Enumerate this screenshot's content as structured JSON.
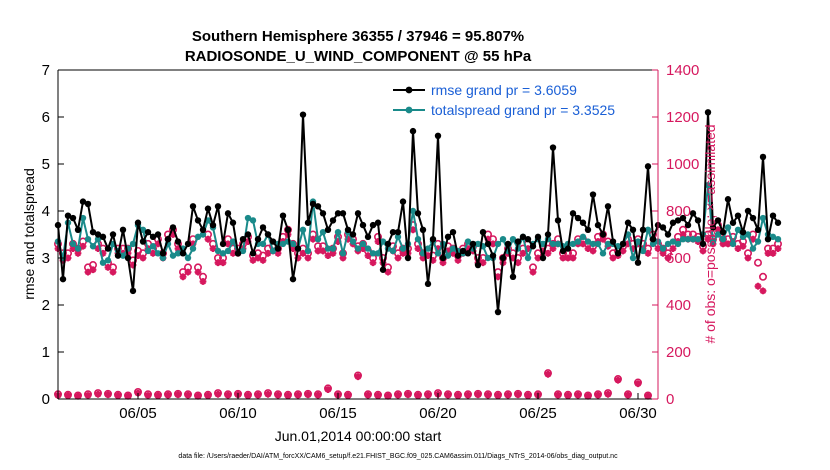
{
  "chart_data": {
    "type": "line",
    "title": "Southern Hemisphere 36355 / 37946 = 95.807%",
    "subtitle": "RADIOSONDE_U_WIND_COMPONENT @ 55 hPa",
    "xlabel": "Jun.01,2014 00:00:00 start",
    "ylabel": "rmse and totalspread",
    "ylabel_right": "# of obs: o=possible; ×=assimilated",
    "xlim": [
      1,
      31
    ],
    "ylim": [
      0,
      7
    ],
    "ylim_right": [
      0,
      1400
    ],
    "x_ticks": [
      5,
      10,
      15,
      20,
      25,
      30
    ],
    "x_tick_labels": [
      "06/05",
      "06/10",
      "06/15",
      "06/20",
      "06/25",
      "06/30"
    ],
    "y_ticks": [
      "0",
      "1",
      "2",
      "3",
      "4",
      "5",
      "6",
      "7"
    ],
    "y_right_ticks": [
      "0",
      "200",
      "400",
      "600",
      "800",
      "1000",
      "1200",
      "1400"
    ],
    "legend": [
      {
        "label": "rmse grand pr = 3.6059",
        "color": "#000000"
      },
      {
        "label": "totalspread grand pr = 3.3525",
        "color": "#1a8a8a"
      }
    ],
    "colors": {
      "rmse": "#000000",
      "spread": "#1a8a8a",
      "obs": "#d6185e"
    },
    "series_x_start": 1.0,
    "series_x_step": 0.25,
    "series": [
      {
        "name": "rmse",
        "axis": "left",
        "values": [
          3.7,
          2.55,
          3.9,
          3.85,
          3.6,
          4.2,
          4.15,
          3.55,
          3.5,
          3.45,
          3.2,
          3.5,
          3.05,
          3.6,
          3.0,
          2.3,
          3.75,
          3.35,
          3.55,
          3.45,
          3.5,
          3.1,
          3.4,
          3.65,
          3.35,
          3.1,
          3.3,
          4.1,
          3.8,
          3.6,
          4.05,
          3.7,
          4.1,
          3.3,
          3.95,
          3.75,
          3.1,
          3.4,
          3.5,
          3.1,
          3.4,
          3.65,
          3.5,
          3.35,
          3.2,
          3.9,
          3.6,
          2.55,
          3.2,
          6.05,
          3.75,
          4.15,
          4.1,
          3.95,
          3.6,
          3.8,
          3.95,
          3.95,
          3.6,
          3.5,
          3.95,
          3.7,
          3.45,
          3.7,
          3.75,
          2.75,
          3.3,
          3.55,
          3.55,
          4.2,
          3.0,
          5.7,
          3.95,
          3.6,
          2.45,
          3.4,
          5.6,
          3.0,
          3.45,
          3.55,
          3.05,
          3.15,
          3.1,
          3.3,
          2.85,
          3.55,
          3.3,
          3.05,
          1.85,
          3.0,
          3.3,
          2.6,
          3.35,
          3.45,
          3.4,
          3.25,
          3.45,
          3.0,
          3.5,
          5.35,
          3.8,
          3.15,
          3.2,
          3.95,
          3.85,
          3.75,
          3.6,
          4.35,
          3.7,
          3.5,
          4.1,
          3.35,
          3.1,
          3.3,
          3.75,
          3.6,
          2.9,
          3.6,
          4.95,
          3.4,
          3.7,
          3.65,
          3.5,
          3.75,
          3.8,
          3.85,
          3.7,
          3.95,
          3.8,
          3.3,
          6.1,
          3.65,
          3.8,
          3.55,
          4.25,
          3.75,
          3.9,
          3.55,
          4.0,
          3.85,
          3.6,
          5.15,
          3.4,
          3.9,
          3.75
        ]
      },
      {
        "name": "totalspread",
        "axis": "left",
        "values": [
          3.35,
          3.0,
          3.75,
          3.3,
          3.2,
          3.85,
          3.4,
          3.25,
          3.4,
          2.9,
          2.95,
          3.3,
          3.15,
          3.05,
          3.2,
          3.3,
          3.7,
          3.6,
          3.15,
          3.25,
          3.1,
          3.0,
          3.3,
          3.05,
          3.1,
          3.2,
          3.0,
          3.2,
          3.45,
          3.5,
          3.8,
          3.65,
          3.15,
          3.1,
          3.15,
          3.35,
          3.1,
          3.15,
          3.85,
          3.8,
          3.3,
          3.3,
          3.5,
          3.15,
          3.3,
          3.3,
          3.35,
          3.3,
          3.2,
          3.6,
          3.15,
          4.2,
          3.4,
          3.55,
          3.2,
          3.2,
          3.55,
          3.1,
          3.55,
          3.35,
          3.2,
          3.3,
          3.2,
          3.1,
          3.1,
          3.35,
          3.2,
          3.15,
          3.45,
          3.2,
          3.3,
          4.0,
          3.4,
          3.1,
          3.2,
          3.35,
          3.1,
          3.3,
          3.05,
          3.2,
          3.15,
          3.1,
          3.35,
          3.2,
          3.3,
          3.25,
          3.0,
          3.0,
          3.3,
          3.4,
          3.15,
          3.4,
          3.2,
          3.45,
          3.0,
          3.3,
          3.4,
          3.3,
          3.4,
          3.3,
          3.3,
          3.25,
          3.3,
          3.3,
          3.35,
          3.45,
          3.35,
          3.3,
          3.3,
          3.1,
          3.3,
          3.3,
          3.25,
          3.3,
          3.5,
          3.0,
          3.35,
          3.15,
          3.6,
          3.3,
          3.35,
          3.2,
          3.3,
          3.35,
          3.3,
          3.4,
          3.4,
          3.4,
          3.4,
          3.5,
          4.55,
          3.35,
          3.5,
          3.4,
          3.65,
          3.3,
          3.6,
          3.45,
          3.5,
          3.2,
          3.35,
          3.85,
          3.5,
          3.45,
          3.4
        ]
      },
      {
        "name": "obs possible",
        "axis": "right",
        "values": [
          660,
          620,
          620,
          660,
          640,
          670,
          560,
          570,
          660,
          640,
          580,
          560,
          640,
          640,
          640,
          590,
          630,
          620,
          660,
          640,
          680,
          620,
          700,
          720,
          660,
          540,
          560,
          680,
          560,
          520,
          700,
          660,
          600,
          600,
          680,
          640,
          640,
          660,
          690,
          610,
          620,
          610,
          640,
          650,
          640,
          690,
          720,
          660,
          620,
          640,
          620,
          700,
          650,
          650,
          630,
          640,
          690,
          620,
          700,
          680,
          650,
          660,
          630,
          600,
          690,
          600,
          560,
          650,
          620,
          640,
          640,
          740,
          660,
          620,
          630,
          610,
          660,
          600,
          650,
          640,
          610,
          640,
          660,
          650,
          600,
          600,
          700,
          680,
          540,
          600,
          640,
          620,
          600,
          640,
          660,
          560,
          620,
          650,
          640,
          660,
          680,
          620,
          620,
          620,
          680,
          680,
          660,
          650,
          690,
          700,
          670,
          620,
          630,
          650,
          680,
          660,
          680,
          660,
          640,
          700,
          660,
          640,
          620,
          660,
          690,
          720,
          700,
          700,
          690,
          650,
          700,
          680,
          740,
          680,
          680,
          690,
          660,
          670,
          620,
          700,
          580,
          520,
          640,
          640,
          660
        ]
      },
      {
        "name": "obs assimilated",
        "axis": "right",
        "values": [
          640,
          590,
          600,
          640,
          620,
          650,
          540,
          550,
          640,
          620,
          560,
          540,
          620,
          620,
          620,
          570,
          610,
          600,
          640,
          620,
          660,
          600,
          680,
          700,
          640,
          520,
          540,
          660,
          540,
          500,
          680,
          640,
          580,
          580,
          660,
          620,
          620,
          640,
          670,
          590,
          600,
          590,
          620,
          630,
          620,
          670,
          700,
          640,
          600,
          620,
          600,
          680,
          630,
          630,
          610,
          620,
          670,
          600,
          680,
          660,
          630,
          640,
          610,
          580,
          670,
          580,
          540,
          630,
          600,
          620,
          620,
          720,
          640,
          600,
          610,
          590,
          640,
          580,
          630,
          620,
          590,
          620,
          640,
          630,
          580,
          580,
          680,
          660,
          520,
          580,
          620,
          600,
          580,
          620,
          640,
          540,
          600,
          630,
          620,
          640,
          660,
          600,
          600,
          600,
          660,
          660,
          640,
          630,
          670,
          680,
          650,
          600,
          610,
          630,
          660,
          640,
          660,
          640,
          620,
          680,
          640,
          620,
          600,
          640,
          670,
          700,
          680,
          680,
          670,
          630,
          680,
          660,
          720,
          660,
          660,
          670,
          640,
          650,
          600,
          680,
          480,
          460,
          620,
          620,
          640
        ]
      }
    ],
    "low_obs_series": [
      {
        "name": "obs possible (low)",
        "axis": "right",
        "x": [
          1.0,
          1.5,
          2.0,
          2.5,
          3.0,
          3.5,
          4.0,
          4.5,
          5.0,
          5.5,
          6.0,
          6.5,
          7.0,
          7.5,
          8.0,
          8.5,
          9.0,
          9.5,
          10.0,
          10.5,
          11.0,
          11.5,
          12.0,
          12.5,
          13.0,
          13.5,
          14.0,
          14.5,
          15.0,
          15.5,
          16.0,
          16.5,
          17.0,
          17.5,
          18.0,
          18.5,
          19.0,
          19.5,
          20.0,
          20.5,
          21.0,
          21.5,
          22.0,
          22.5,
          23.0,
          23.5,
          24.0,
          24.5,
          25.0,
          25.5,
          26.0,
          26.5,
          27.0,
          27.5,
          28.0,
          28.5,
          29.0,
          29.5,
          30.0,
          30.5
        ],
        "values": [
          20,
          18,
          15,
          20,
          25,
          22,
          18,
          15,
          30,
          20,
          18,
          20,
          22,
          20,
          15,
          18,
          25,
          20,
          22,
          18,
          20,
          25,
          20,
          18,
          20,
          22,
          20,
          45,
          20,
          18,
          100,
          20,
          18,
          15,
          20,
          22,
          18,
          20,
          25,
          20,
          18,
          20,
          22,
          20,
          18,
          20,
          22,
          18,
          20,
          110,
          20,
          18,
          20,
          15,
          20,
          25,
          85,
          20,
          70,
          15
        ]
      },
      {
        "name": "obs assimilated (low)",
        "axis": "right",
        "x": [
          1.0,
          1.5,
          2.0,
          2.5,
          3.0,
          3.5,
          4.0,
          4.5,
          5.0,
          5.5,
          6.0,
          6.5,
          7.0,
          7.5,
          8.0,
          8.5,
          9.0,
          9.5,
          10.0,
          10.5,
          11.0,
          11.5,
          12.0,
          12.5,
          13.0,
          13.5,
          14.0,
          14.5,
          15.0,
          15.5,
          16.0,
          16.5,
          17.0,
          17.5,
          18.0,
          18.5,
          19.0,
          19.5,
          20.0,
          20.5,
          21.0,
          21.5,
          22.0,
          22.5,
          23.0,
          23.5,
          24.0,
          24.5,
          25.0,
          25.5,
          26.0,
          26.5,
          27.0,
          27.5,
          28.0,
          28.5,
          29.0,
          29.5,
          30.0,
          30.5
        ],
        "values": [
          15,
          14,
          12,
          15,
          20,
          18,
          14,
          12,
          25,
          15,
          14,
          16,
          18,
          16,
          12,
          14,
          20,
          16,
          18,
          14,
          16,
          20,
          16,
          14,
          16,
          18,
          16,
          40,
          16,
          14,
          95,
          16,
          14,
          12,
          16,
          18,
          14,
          16,
          20,
          16,
          14,
          16,
          18,
          16,
          14,
          16,
          18,
          14,
          16,
          105,
          16,
          14,
          16,
          12,
          16,
          20,
          80,
          16,
          65,
          12
        ]
      }
    ],
    "footnote": "data file: /Users/raeder/DAI/ATM_forcXX/CAM6_setup/f.e21.FHIST_BGC.f09_025.CAM6assim.011/Diags_NTrS_2014-06/obs_diag_output.nc"
  }
}
